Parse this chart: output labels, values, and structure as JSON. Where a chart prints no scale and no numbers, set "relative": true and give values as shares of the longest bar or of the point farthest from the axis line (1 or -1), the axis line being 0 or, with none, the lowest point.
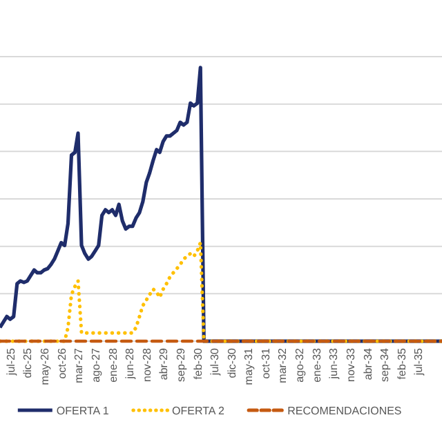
{
  "chart_data": {
    "type": "line",
    "relative": true,
    "grid": "y",
    "legend": "bottom",
    "xlim": [
      "2025-04",
      "2036-02"
    ],
    "xticks": [
      {
        "value": "2025-07",
        "label": "jul-25"
      },
      {
        "value": "2025-12",
        "label": "dic-25"
      },
      {
        "value": "2026-05",
        "label": "may-26"
      },
      {
        "value": "2026-10",
        "label": "oct-26"
      },
      {
        "value": "2027-03",
        "label": "mar-27"
      },
      {
        "value": "2027-08",
        "label": "ago-27"
      },
      {
        "value": "2028-01",
        "label": "ene-28"
      },
      {
        "value": "2028-06",
        "label": "jun-28"
      },
      {
        "value": "2028-11",
        "label": "nov-28"
      },
      {
        "value": "2029-04",
        "label": "abr-29"
      },
      {
        "value": "2029-09",
        "label": "sep-29"
      },
      {
        "value": "2030-02",
        "label": "feb-30"
      },
      {
        "value": "2030-07",
        "label": "jul-30"
      },
      {
        "value": "2030-12",
        "label": "dic-30"
      },
      {
        "value": "2031-05",
        "label": "may-31"
      },
      {
        "value": "2031-10",
        "label": "oct-31"
      },
      {
        "value": "2032-03",
        "label": "mar-32"
      },
      {
        "value": "2032-08",
        "label": "ago-32"
      },
      {
        "value": "2033-01",
        "label": "ene-33"
      },
      {
        "value": "2033-06",
        "label": "jun-33"
      },
      {
        "value": "2033-11",
        "label": "nov-33"
      },
      {
        "value": "2034-04",
        "label": "abr-34"
      },
      {
        "value": "2034-09",
        "label": "sep-34"
      },
      {
        "value": "2035-02",
        "label": "feb-35"
      },
      {
        "value": "2035-07",
        "label": "jul-35"
      }
    ],
    "series": [
      {
        "name": "OFERTA 1",
        "color": "#1f2d6b",
        "line_style": "solid",
        "x": [
          "2025-04",
          "2025-05",
          "2025-06",
          "2025-07",
          "2025-08",
          "2025-09",
          "2025-10",
          "2025-11",
          "2025-12",
          "2026-01",
          "2026-02",
          "2026-03",
          "2026-04",
          "2026-05",
          "2026-06",
          "2026-07",
          "2026-08",
          "2026-09",
          "2026-10",
          "2026-11",
          "2026-12",
          "2027-01",
          "2027-02",
          "2027-03",
          "2027-04",
          "2027-05",
          "2027-06",
          "2027-07",
          "2027-08",
          "2027-09",
          "2027-10",
          "2027-11",
          "2027-12",
          "2028-01",
          "2028-02",
          "2028-03",
          "2028-04",
          "2028-05",
          "2028-06",
          "2028-07",
          "2028-08",
          "2028-09",
          "2028-10",
          "2028-11",
          "2028-12",
          "2029-01",
          "2029-02",
          "2029-03",
          "2029-04",
          "2029-05",
          "2029-06",
          "2029-07",
          "2029-08",
          "2029-09",
          "2029-10",
          "2029-11",
          "2029-12",
          "2030-01",
          "2030-02",
          "2030-03",
          "2030-04",
          "2036-02"
        ],
        "values": [
          0.05,
          0.07,
          0.09,
          0.08,
          0.09,
          0.21,
          0.22,
          0.215,
          0.22,
          0.24,
          0.26,
          0.25,
          0.25,
          0.26,
          0.265,
          0.28,
          0.3,
          0.33,
          0.36,
          0.35,
          0.43,
          0.68,
          0.69,
          0.76,
          0.35,
          0.32,
          0.3,
          0.31,
          0.33,
          0.35,
          0.46,
          0.48,
          0.47,
          0.48,
          0.46,
          0.5,
          0.44,
          0.41,
          0.42,
          0.42,
          0.45,
          0.47,
          0.51,
          0.58,
          0.615,
          0.66,
          0.7,
          0.69,
          0.73,
          0.75,
          0.75,
          0.76,
          0.77,
          0.8,
          0.79,
          0.8,
          0.87,
          0.86,
          0.87,
          1,
          0,
          0
        ]
      },
      {
        "name": "OFERTA 2",
        "color": "#ffc000",
        "line_style": "dotted",
        "x": [
          "2025-04",
          "2026-11",
          "2026-12",
          "2027-01",
          "2027-02",
          "2027-03",
          "2027-04",
          "2028-07",
          "2028-08",
          "2028-09",
          "2028-10",
          "2028-11",
          "2028-12",
          "2029-01",
          "2029-02",
          "2029-03",
          "2029-04",
          "2029-05",
          "2029-06",
          "2029-07",
          "2029-08",
          "2029-09",
          "2029-10",
          "2029-11",
          "2029-12",
          "2030-01",
          "2030-02",
          "2030-03",
          "2030-04",
          "2036-02"
        ],
        "values": [
          0,
          0,
          0.05,
          0.17,
          0.2,
          0.22,
          0.03,
          0.03,
          0.05,
          0.09,
          0.13,
          0.15,
          0.17,
          0.19,
          0.18,
          0.16,
          0.19,
          0.21,
          0.235,
          0.25,
          0.265,
          0.28,
          0.3,
          0.31,
          0.32,
          0.31,
          0.33,
          0.36,
          0,
          0
        ]
      },
      {
        "name": "RECOMENDACIONES",
        "color": "#c55a11",
        "line_style": "dashed",
        "x": [
          "2025-04",
          "2036-02"
        ],
        "values": [
          0,
          0
        ]
      }
    ]
  }
}
